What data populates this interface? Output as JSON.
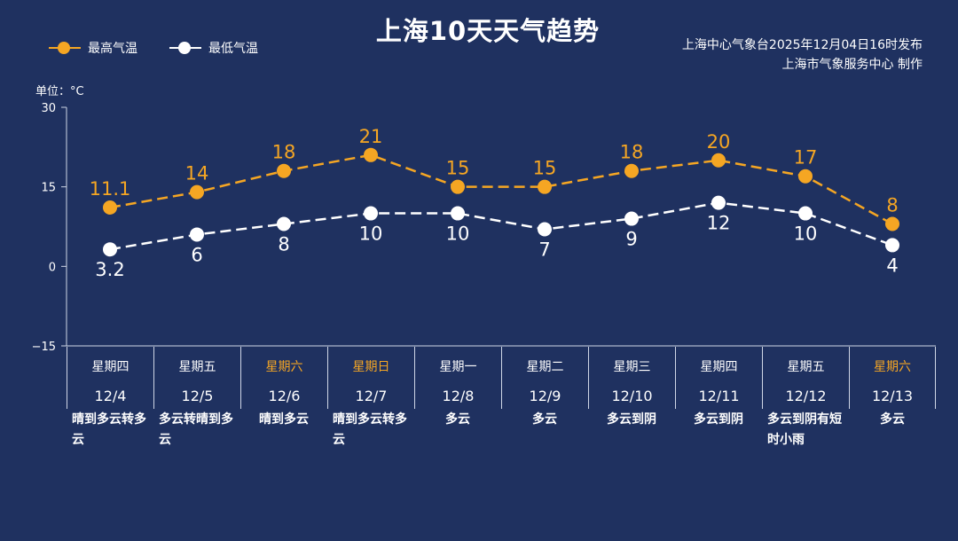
{
  "header": {
    "title": "上海10天天气趋势",
    "source_line1": "上海中心气象台2025年12月04日16时发布",
    "source_line2": "上海市气象服务中心  制作",
    "unit": "单位：°C"
  },
  "colors": {
    "high": "#f5a623",
    "low": "#ffffff",
    "background": "#1f3160",
    "weekend": "#f5a623"
  },
  "chart_data": {
    "type": "line",
    "categories": [
      "12/4",
      "12/5",
      "12/6",
      "12/7",
      "12/8",
      "12/9",
      "12/10",
      "12/11",
      "12/12",
      "12/13"
    ],
    "series": [
      {
        "name": "最高气温",
        "values": [
          11.1,
          14,
          18,
          21,
          15,
          15,
          18,
          20,
          17,
          8
        ],
        "labels": [
          "11.1",
          "14",
          "18",
          "21",
          "15",
          "15",
          "18",
          "20",
          "17",
          "8"
        ]
      },
      {
        "name": "最低气温",
        "values": [
          3.2,
          6,
          8,
          10,
          10,
          7,
          9,
          12,
          10,
          4
        ],
        "labels": [
          "3.2",
          "6",
          "8",
          "10",
          "10",
          "7",
          "9",
          "12",
          "10",
          "4"
        ]
      }
    ],
    "ylim": [
      -15,
      30
    ],
    "yticks": [
      30,
      15,
      0,
      -15
    ],
    "ytick_labels": [
      "30",
      "15",
      "0",
      "−15"
    ],
    "legend_position": "top-left",
    "line_style": "dashed",
    "grid": false
  },
  "days": [
    {
      "weekday": "星期四",
      "date": "12/4",
      "weekend": false,
      "condition": "晴到多云转多云"
    },
    {
      "weekday": "星期五",
      "date": "12/5",
      "weekend": false,
      "condition": "多云转晴到多云"
    },
    {
      "weekday": "星期六",
      "date": "12/6",
      "weekend": true,
      "condition": "晴到多云"
    },
    {
      "weekday": "星期日",
      "date": "12/7",
      "weekend": true,
      "condition": "晴到多云转多云"
    },
    {
      "weekday": "星期一",
      "date": "12/8",
      "weekend": false,
      "condition": "多云"
    },
    {
      "weekday": "星期二",
      "date": "12/9",
      "weekend": false,
      "condition": "多云"
    },
    {
      "weekday": "星期三",
      "date": "12/10",
      "weekend": false,
      "condition": "多云到阴"
    },
    {
      "weekday": "星期四",
      "date": "12/11",
      "weekend": false,
      "condition": "多云到阴"
    },
    {
      "weekday": "星期五",
      "date": "12/12",
      "weekend": false,
      "condition": "多云到阴有短时小雨"
    },
    {
      "weekday": "星期六",
      "date": "12/13",
      "weekend": true,
      "condition": "多云"
    }
  ]
}
